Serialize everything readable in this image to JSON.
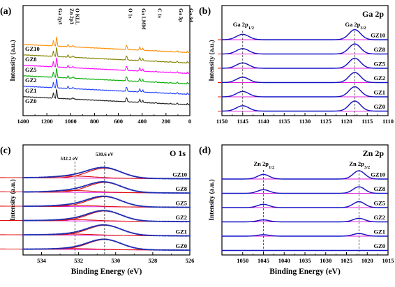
{
  "chart_data": [
    {
      "panel_label": "(a)",
      "type": "line",
      "title": "",
      "xlabel": "",
      "ylabel": "Intensity (a.u.)",
      "xlim": [
        1400,
        0
      ],
      "x_ticks": [
        1400,
        1200,
        1000,
        800,
        600,
        400,
        200,
        0
      ],
      "series": [
        {
          "name": "GZ10",
          "color": "#ff8c00"
        },
        {
          "name": "GZ8",
          "color": "#808000"
        },
        {
          "name": "GZ5",
          "color": "#ff00ff"
        },
        {
          "name": "GZ2",
          "color": "#00aa00"
        },
        {
          "name": "GZ1",
          "color": "#1e3cff"
        },
        {
          "name": "GZ0",
          "color": "#1a1a1a"
        }
      ],
      "peak_labels": [
        {
          "text": "Ga 2p3",
          "x": 1118
        },
        {
          "text": "Zn 2p3",
          "x": 1022
        },
        {
          "text": "O KLL",
          "x": 975
        },
        {
          "text": "O 1s",
          "x": 531
        },
        {
          "text": "Ga LMM",
          "x": 420
        },
        {
          "text": "C 1s",
          "x": 285
        },
        {
          "text": "Ga 3p",
          "x": 105
        },
        {
          "text": "Ga 3d",
          "x": 20
        }
      ]
    },
    {
      "panel_label": "(b)",
      "type": "line",
      "title": "Ga 2p",
      "xlabel": "",
      "ylabel": "Intensity (a.u.)",
      "xlim": [
        1150,
        1110
      ],
      "x_ticks": [
        1150,
        1145,
        1140,
        1135,
        1130,
        1125,
        1120,
        1115,
        1110
      ],
      "series": [
        {
          "name": "GZ10"
        },
        {
          "name": "GZ8"
        },
        {
          "name": "GZ5"
        },
        {
          "name": "GZ2"
        },
        {
          "name": "GZ1"
        },
        {
          "name": "GZ0"
        }
      ],
      "peaks": [
        {
          "label": "Ga 2p",
          "sub": "1/2",
          "x": 1145
        },
        {
          "label": "Ga 2p",
          "sub": "3/2",
          "x": 1118
        }
      ]
    },
    {
      "panel_label": "(c)",
      "type": "line",
      "title": "O 1s",
      "xlabel": "Binding Energy (eV)",
      "ylabel": "Intensity (a.u.)",
      "xlim": [
        535,
        526
      ],
      "x_ticks": [
        534,
        532,
        530,
        528,
        526
      ],
      "series": [
        {
          "name": "GZ10"
        },
        {
          "name": "GZ8"
        },
        {
          "name": "GZ5"
        },
        {
          "name": "GZ2"
        },
        {
          "name": "GZ1"
        },
        {
          "name": "GZ0"
        }
      ],
      "annotations": [
        {
          "text": "532.2 eV",
          "x": 532.2
        },
        {
          "text": "530.6 eV",
          "x": 530.6
        }
      ]
    },
    {
      "panel_label": "(d)",
      "type": "line",
      "title": "Zn 2p",
      "xlabel": "Binding Energy (eV)",
      "ylabel": "Intensity (a.u.)",
      "xlim": [
        1055,
        1015
      ],
      "x_ticks": [
        1050,
        1045,
        1040,
        1035,
        1030,
        1025,
        1020,
        1015
      ],
      "series": [
        {
          "name": "GZ10"
        },
        {
          "name": "GZ8"
        },
        {
          "name": "GZ5"
        },
        {
          "name": "GZ2"
        },
        {
          "name": "GZ1"
        },
        {
          "name": "GZ0"
        }
      ],
      "peaks": [
        {
          "label": "Zn 2p",
          "sub": "1/2",
          "x": 1045
        },
        {
          "label": "Zn 2p",
          "sub": "3/2",
          "x": 1022
        }
      ]
    }
  ],
  "colors": {
    "fit_blue": "#1414c8",
    "component_red": "#e01010",
    "background_magenta": "#e020e0",
    "raw_data": "#202020"
  }
}
